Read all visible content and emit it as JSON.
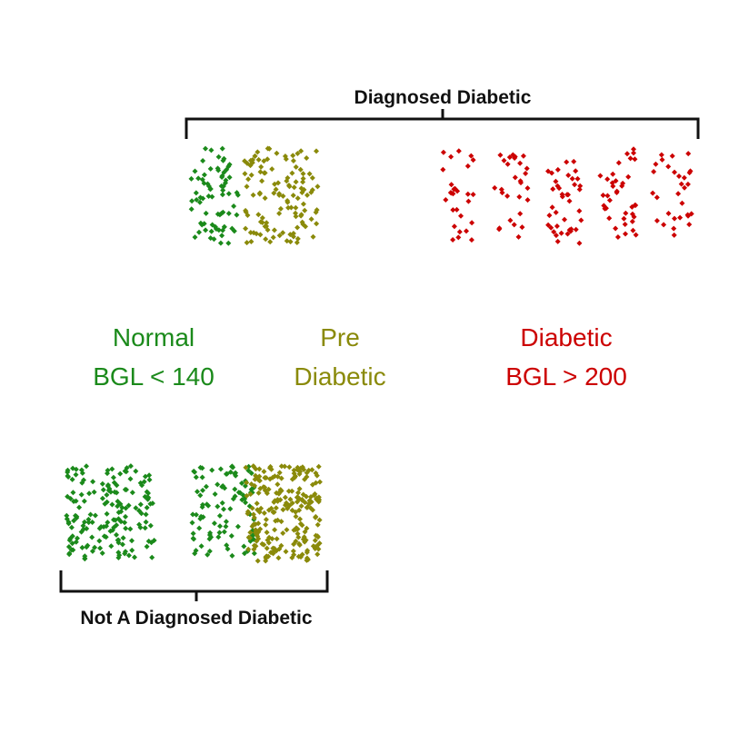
{
  "colors": {
    "normal": "#1b8a1b",
    "pre": "#8a8a0a",
    "diabetic": "#cc0000",
    "bracket": "#111111"
  },
  "brackets": {
    "top_label": "Diagnosed Diabetic",
    "bottom_label": "Not A Diagnosed Diabetic"
  },
  "legend": {
    "normal": {
      "line1": "Normal",
      "line2": "BGL < 140"
    },
    "pre": {
      "line1": "Pre",
      "line2": "Diabetic"
    },
    "diabetic": {
      "line1": "Diabetic",
      "line2": "BGL > 200"
    }
  }
}
